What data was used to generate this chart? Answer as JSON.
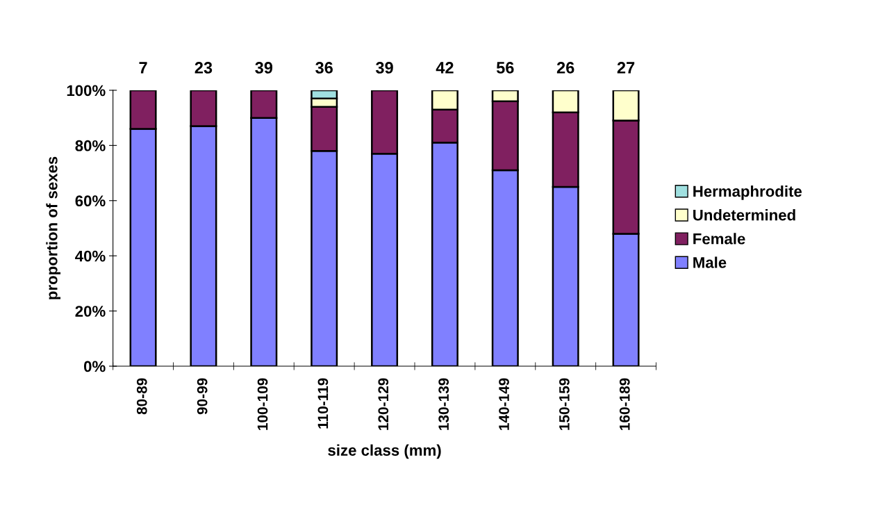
{
  "chart_data": {
    "type": "bar",
    "stacked": true,
    "xlabel": "size class (mm)",
    "ylabel": "proportion of sexes",
    "categories": [
      "80-89",
      "90-99",
      "100-109",
      "110-119",
      "120-129",
      "130-139",
      "140-149",
      "150-159",
      "160-189"
    ],
    "series": [
      {
        "name": "Male",
        "color": "#8080ff",
        "values": [
          86,
          87,
          90,
          78,
          77,
          81,
          71,
          65,
          48
        ]
      },
      {
        "name": "Female",
        "color": "#802060",
        "values": [
          14,
          13,
          10,
          16,
          23,
          12,
          25,
          27,
          41
        ]
      },
      {
        "name": "Undetermined",
        "color": "#ffffcc",
        "values": [
          0,
          0,
          0,
          3,
          0,
          7,
          4,
          8,
          11
        ]
      },
      {
        "name": "Hermaphrodite",
        "color": "#a0e0e0",
        "values": [
          0,
          0,
          0,
          3,
          0,
          0,
          0,
          0,
          0
        ]
      }
    ],
    "ylim": [
      0,
      100
    ],
    "yticks": [
      {
        "value": 0,
        "label": "0%"
      },
      {
        "value": 20,
        "label": "20%"
      },
      {
        "value": 40,
        "label": "40%"
      },
      {
        "value": 60,
        "label": "60%"
      },
      {
        "value": 80,
        "label": "80%"
      },
      {
        "value": 100,
        "label": "100%"
      }
    ],
    "annotations": [
      {
        "text": "7",
        "x": "80-89",
        "y": 100
      },
      {
        "text": "23",
        "x": "90-99",
        "y": 100
      },
      {
        "text": "39",
        "x": "100-109",
        "y": 100
      },
      {
        "text": "36",
        "x": "110-119",
        "y": 100
      },
      {
        "text": "39",
        "x": "120-129",
        "y": 100
      },
      {
        "text": "42",
        "x": "130-139",
        "y": 100
      },
      {
        "text": "56",
        "x": "140-149",
        "y": 100
      },
      {
        "text": "26",
        "x": "150-159",
        "y": 100
      },
      {
        "text": "27",
        "x": "160-189",
        "y": 100
      }
    ],
    "legend": "right",
    "grid": false
  }
}
